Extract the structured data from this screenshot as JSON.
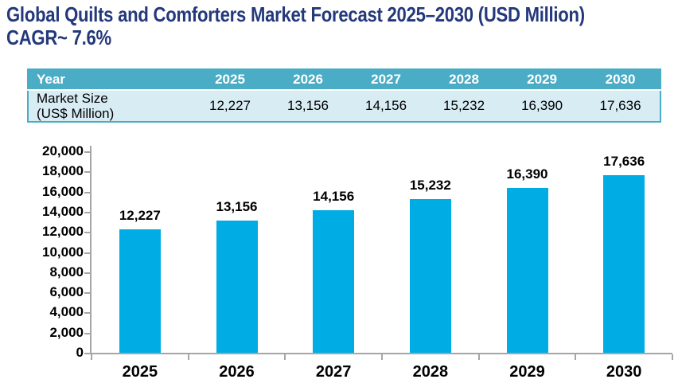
{
  "title": {
    "line1": "Global Quilts and Comforters Market Forecast 2025–2030 (USD Million)",
    "line2": "CAGR~ 7.6%"
  },
  "table": {
    "header": [
      "Year",
      "2025",
      "2026",
      "2027",
      "2028",
      "2029",
      "2030"
    ],
    "row_label_line1": "Market Size",
    "row_label_line2": "(US$ Million)",
    "values": [
      "12,227",
      "13,156",
      "14,156",
      "15,232",
      "16,390",
      "17,636"
    ]
  },
  "chart_data": {
    "type": "bar",
    "categories": [
      "2025",
      "2026",
      "2027",
      "2028",
      "2029",
      "2030"
    ],
    "values": [
      12227,
      13156,
      14156,
      15232,
      16390,
      17636
    ],
    "labels": [
      "12,227",
      "13,156",
      "14,156",
      "15,232",
      "16,390",
      "17,636"
    ],
    "title": "",
    "xlabel": "",
    "ylabel": "",
    "ylim": [
      0,
      20000
    ],
    "ytick_step": 2000,
    "grid": false,
    "legend": false,
    "bar_color": "#00ACE4"
  },
  "colors": {
    "title": "#24397B",
    "table_header_bg": "#4BACC6",
    "table_header_text": "#FFFFFF",
    "table_row_bg": "#D8ECF4",
    "table_border": "#4BACC6",
    "bar": "#00ACE4",
    "axis": "#A6A6A6",
    "label_text": "#000000",
    "page_bg": "#FFFFFF"
  }
}
